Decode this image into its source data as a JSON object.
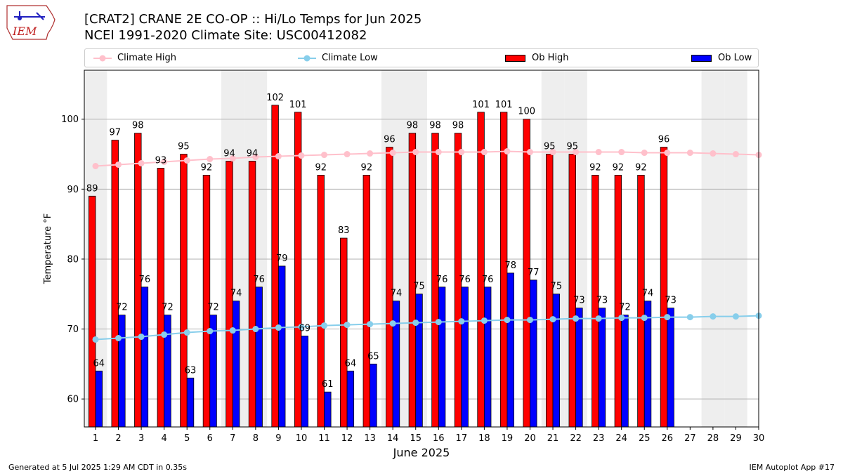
{
  "header": {
    "title_line1": "[CRAT2] CRANE 2E CO-OP :: Hi/Lo Temps for Jun 2025",
    "title_line2": "NCEI 1991-2020 Climate Site: USC00412082",
    "logo_text": "IEM"
  },
  "legend": {
    "climate_high": "Climate High",
    "climate_low": "Climate Low",
    "ob_high": "Ob High",
    "ob_low": "Ob Low"
  },
  "footer": {
    "generated": "Generated at 5 Jul 2025 1:29 AM CDT in 0.35s",
    "app": "IEM Autoplot App #17"
  },
  "colors": {
    "climate_high": "#ffc0cb",
    "climate_low": "#87ceeb",
    "ob_high": "#ff0000",
    "ob_low": "#0000ff",
    "weekend_shade": "#eeeeee",
    "grid": "#b0b0b0"
  },
  "chart_data": {
    "type": "bar",
    "xlabel": "June 2025",
    "ylabel": "Temperature °F",
    "ylim": [
      56,
      107
    ],
    "yticks": [
      60,
      70,
      80,
      90,
      100
    ],
    "grid": "horizontal",
    "legend_position": "top",
    "categories": [
      "1",
      "2",
      "3",
      "4",
      "5",
      "6",
      "7",
      "8",
      "9",
      "10",
      "11",
      "12",
      "13",
      "14",
      "15",
      "16",
      "17",
      "18",
      "19",
      "20",
      "21",
      "22",
      "23",
      "24",
      "25",
      "26",
      "27",
      "28",
      "29",
      "30"
    ],
    "shaded_weekend_days": [
      1,
      7,
      8,
      14,
      15,
      21,
      22,
      28,
      29
    ],
    "series": [
      {
        "name": "Ob High",
        "kind": "bar",
        "values": [
          89,
          97,
          98,
          93,
          95,
          92,
          94,
          94,
          102,
          101,
          92,
          83,
          92,
          96,
          98,
          98,
          98,
          101,
          101,
          100,
          95,
          95,
          92,
          92,
          92,
          96,
          null,
          null,
          null,
          null
        ]
      },
      {
        "name": "Ob Low",
        "kind": "bar",
        "values": [
          64,
          72,
          76,
          72,
          63,
          72,
          74,
          76,
          79,
          69,
          61,
          64,
          65,
          74,
          75,
          76,
          76,
          76,
          78,
          77,
          75,
          73,
          73,
          72,
          74,
          73,
          null,
          null,
          null,
          null
        ]
      },
      {
        "name": "Climate High",
        "kind": "line",
        "values": [
          93.3,
          93.5,
          93.7,
          93.9,
          94.1,
          94.3,
          94.4,
          94.6,
          94.7,
          94.8,
          94.9,
          95.0,
          95.1,
          95.2,
          95.3,
          95.3,
          95.3,
          95.3,
          95.4,
          95.3,
          95.3,
          95.3,
          95.3,
          95.3,
          95.2,
          95.2,
          95.2,
          95.1,
          95.0,
          94.9
        ]
      },
      {
        "name": "Climate Low",
        "kind": "line",
        "values": [
          68.5,
          68.7,
          68.9,
          69.2,
          69.5,
          69.7,
          69.8,
          70.0,
          70.2,
          70.3,
          70.5,
          70.6,
          70.7,
          70.8,
          70.9,
          71.0,
          71.1,
          71.2,
          71.3,
          71.3,
          71.4,
          71.5,
          71.5,
          71.6,
          71.6,
          71.7,
          71.7,
          71.8,
          71.8,
          71.9
        ]
      }
    ]
  }
}
